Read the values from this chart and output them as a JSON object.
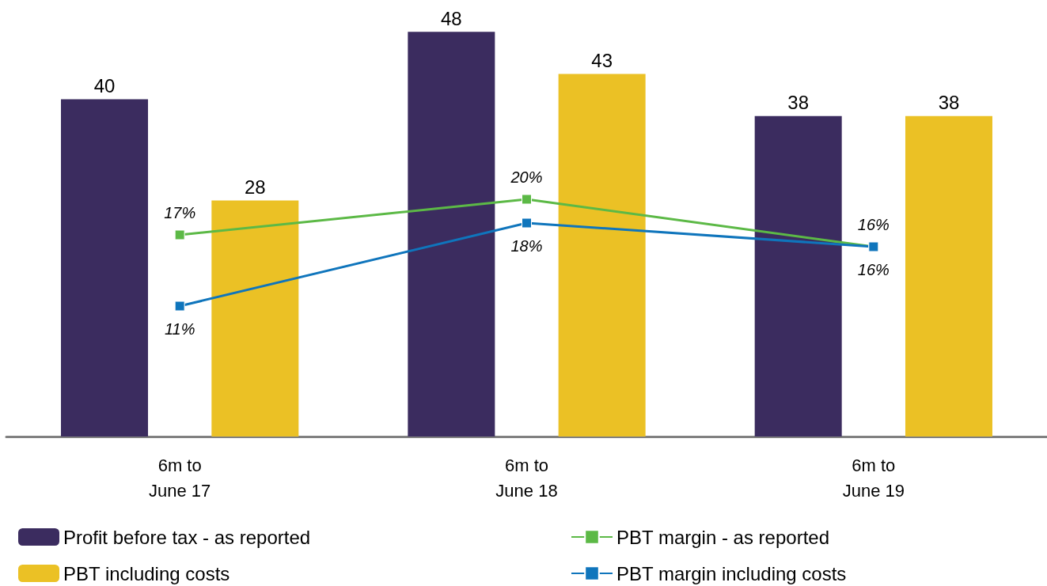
{
  "chart_data": {
    "type": "bar",
    "categories": [
      "6m to\nJune 17",
      "6m to\nJune 18",
      "6m to\nJune 19"
    ],
    "series": [
      {
        "name": "Profit before tax - as reported",
        "color": "#3b2c5f",
        "values": [
          40,
          48,
          38
        ]
      },
      {
        "name": "PBT including costs",
        "color": "#ebc125",
        "values": [
          28,
          43,
          38
        ]
      },
      {
        "type": "line",
        "axis": "y2",
        "name": "PBT margin - as reported",
        "color": "#5cb946",
        "values": [
          17,
          20,
          16
        ],
        "value_labels": [
          "17%",
          "20%",
          "16%"
        ]
      },
      {
        "type": "line",
        "axis": "y2",
        "name": "PBT margin including costs",
        "color": "#0f75bc",
        "values": [
          11,
          18,
          16
        ],
        "value_labels": [
          "11%",
          "18%",
          "16%"
        ]
      }
    ],
    "tick_labels": "x",
    "data_labels": true,
    "legend": "bottom",
    "marker": "square",
    "line_style": "solid"
  }
}
